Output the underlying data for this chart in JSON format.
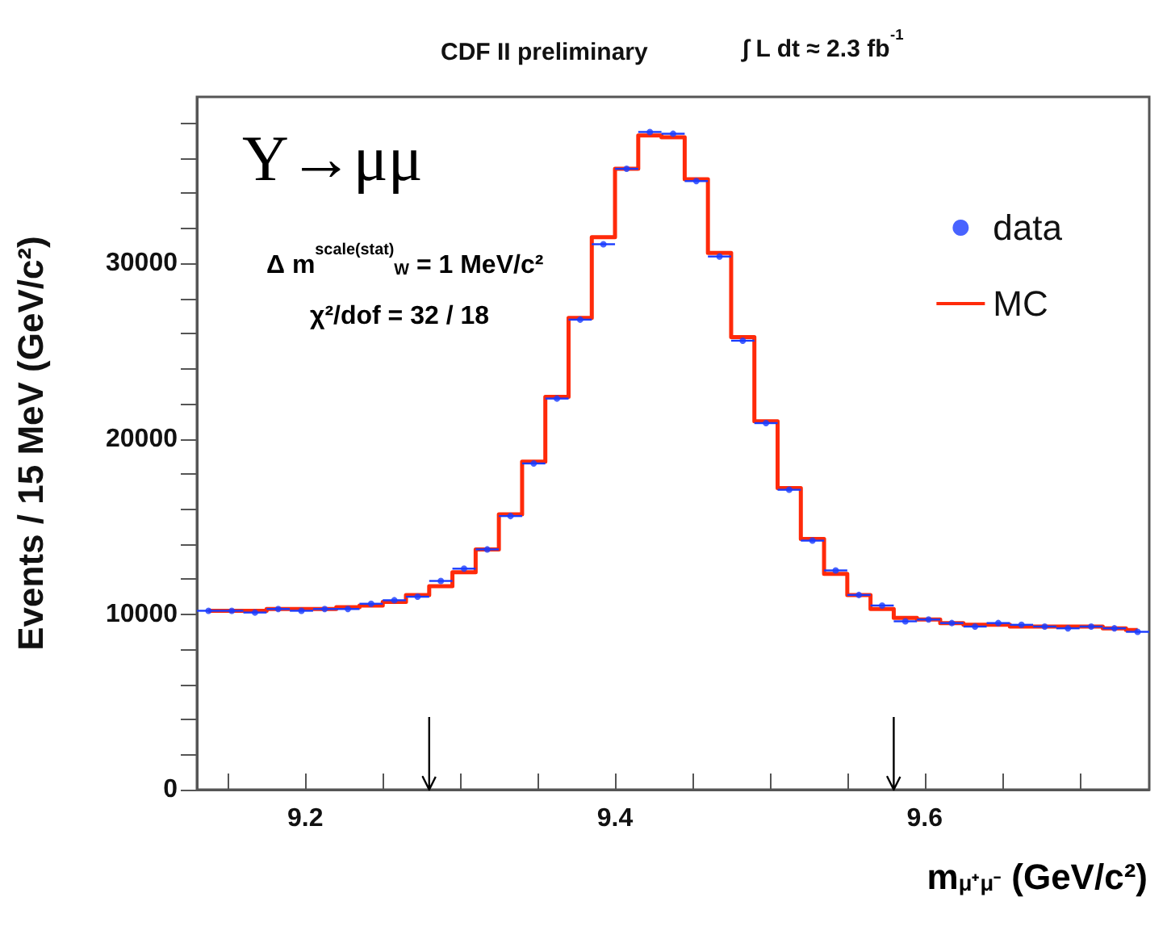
{
  "chart_data": {
    "type": "step",
    "title": "CDF II preliminary",
    "subtitle": "∫ L dt ≈ 2.3 fb$^{-1}$",
    "xlabel": "m$_{μ⁺μ⁻}$ (GeV/c²)",
    "ylabel": "Events / 15 MeV (GeV/c²)",
    "annotations": [
      "Υ→μμ",
      "Δ m$^{scale(stat)}$$_{W}$ = 1 MeV/c²",
      "χ²/dof = 32 / 18"
    ],
    "x": [
      9.1375,
      9.1525,
      9.1675,
      9.1825,
      9.1975,
      9.2125,
      9.2275,
      9.2425,
      9.2575,
      9.2725,
      9.2875,
      9.3025,
      9.3175,
      9.3325,
      9.3475,
      9.3625,
      9.3775,
      9.3925,
      9.4075,
      9.4225,
      9.4375,
      9.4525,
      9.4675,
      9.4825,
      9.4975,
      9.5125,
      9.5275,
      9.5425,
      9.5575,
      9.5725,
      9.5875,
      9.6025,
      9.6175,
      9.6325,
      9.6475,
      9.6625,
      9.6775,
      9.6925,
      9.7075,
      9.7225,
      9.7375
    ],
    "series": [
      {
        "name": "data",
        "type": "scatter",
        "color": "#1a3cff",
        "marker": "circle",
        "values": [
          10200,
          10200,
          10100,
          10300,
          10200,
          10300,
          10300,
          10600,
          10800,
          11000,
          11900,
          12600,
          13700,
          15600,
          18600,
          22300,
          26800,
          31100,
          35400,
          37500,
          37400,
          34700,
          30400,
          25600,
          20900,
          17100,
          14200,
          12500,
          11100,
          10500,
          9600,
          9700,
          9500,
          9300,
          9500,
          9400,
          9300,
          9200,
          9300,
          9200,
          9000
        ],
        "xerrors": [
          0.0075,
          0.0075,
          0.0075,
          0.0075,
          0.0075,
          0.0075,
          0.0075,
          0.0075,
          0.0075,
          0.0075,
          0.0075,
          0.0075,
          0.0075,
          0.0075,
          0.0075,
          0.0075,
          0.0075,
          0.0075,
          0.0075,
          0.0075,
          0.0075,
          0.0075,
          0.0075,
          0.0075,
          0.0075,
          0.0075,
          0.0075,
          0.0075,
          0.0075,
          0.0075,
          0.0075,
          0.0075,
          0.0075,
          0.0075,
          0.0075,
          0.0075,
          0.0075,
          0.0075,
          0.0075,
          0.0075,
          0.0075
        ]
      },
      {
        "name": "MC",
        "color": "#ff2a0a",
        "marker": "none",
        "line_style": "solid",
        "values": [
          10200,
          10200,
          10200,
          10300,
          10300,
          10300,
          10400,
          10500,
          10700,
          11100,
          11600,
          12400,
          13700,
          15700,
          18700,
          22400,
          26900,
          31500,
          35400,
          37300,
          37200,
          34800,
          30600,
          25800,
          21000,
          17200,
          14300,
          12300,
          11100,
          10300,
          9800,
          9700,
          9500,
          9400,
          9400,
          9300,
          9300,
          9300,
          9300,
          9200,
          9100
        ]
      }
    ],
    "xlim": [
      9.13,
      9.745
    ],
    "xticks": [
      {
        "value": 9.15,
        "label": null
      },
      9.2,
      {
        "value": 9.25,
        "label": null
      },
      {
        "value": 9.3,
        "label": null
      },
      {
        "value": 9.35,
        "label": null
      },
      9.4,
      {
        "value": 9.45,
        "label": null
      },
      {
        "value": 9.5,
        "label": null
      },
      {
        "value": 9.55,
        "label": null
      },
      9.6,
      {
        "value": 9.65,
        "label": null
      },
      {
        "value": 9.7,
        "label": null
      }
    ],
    "ylim": [
      0,
      39500
    ],
    "yticks": [
      0,
      {
        "value": 2000,
        "label": null
      },
      {
        "value": 4000,
        "label": null
      },
      {
        "value": 6000,
        "label": null
      },
      {
        "value": 8000,
        "label": null
      },
      10000,
      {
        "value": 12000,
        "label": null
      },
      {
        "value": 14000,
        "label": null
      },
      {
        "value": 16000,
        "label": null
      },
      {
        "value": 18000,
        "label": null
      },
      20000,
      {
        "value": 22000,
        "label": null
      },
      {
        "value": 24000,
        "label": null
      },
      {
        "value": 26000,
        "label": null
      },
      {
        "value": 28000,
        "label": null
      },
      30000,
      {
        "value": 32000,
        "label": null
      },
      {
        "value": 34000,
        "label": null
      },
      {
        "value": 36000,
        "label": null
      },
      {
        "value": 38000,
        "label": null
      }
    ],
    "ref_lines": [
      {
        "axis": "x",
        "value": 9.28
      },
      {
        "axis": "x",
        "value": 9.58
      }
    ],
    "legend": "top right",
    "grid": false
  }
}
